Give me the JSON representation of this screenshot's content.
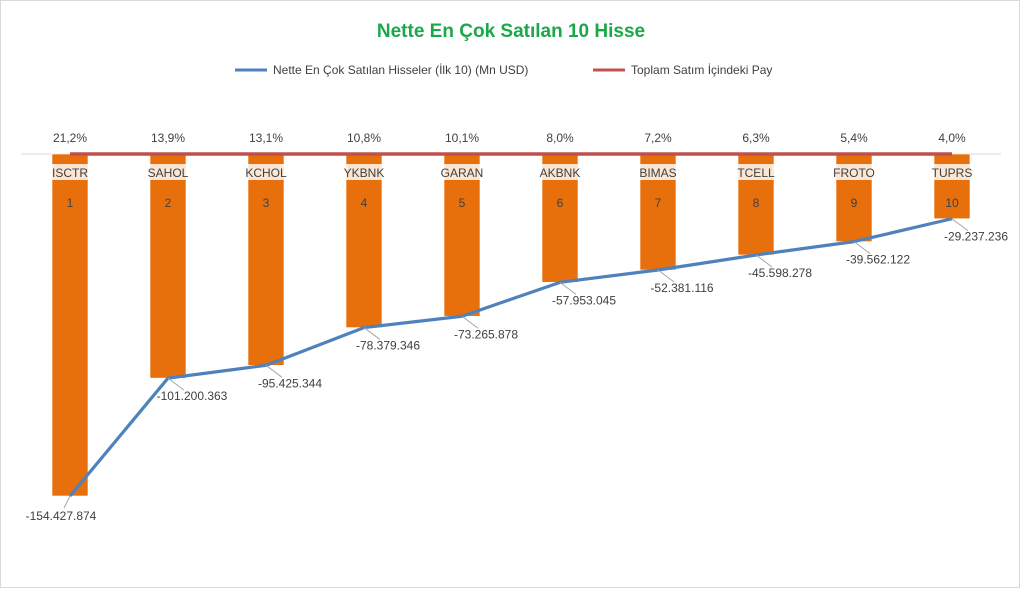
{
  "chart_data": {
    "type": "bar",
    "title": "Nette En Çok Satılan 10 Hisse",
    "categories": [
      "ISCTR",
      "SAHOL",
      "KCHOL",
      "YKBNK",
      "GARAN",
      "AKBNK",
      "BIMAS",
      "TCELL",
      "FROTO",
      "TUPRS"
    ],
    "ranks": [
      "1",
      "2",
      "3",
      "4",
      "5",
      "6",
      "7",
      "8",
      "9",
      "10"
    ],
    "series": [
      {
        "name": "Nette En Çok Satılan Hisseler (İlk 10) (Mn USD)",
        "kind": "bar+line",
        "values": [
          -154.427874,
          -101.200363,
          -95.425344,
          -78.379346,
          -73.265878,
          -57.953045,
          -52.381116,
          -45.598278,
          -39.562122,
          -29.237236
        ],
        "labels": [
          "-154.427.874",
          "-101.200.363",
          "-95.425.344",
          "-78.379.346",
          "-73.265.878",
          "-57.953.045",
          "-52.381.116",
          "-45.598.278",
          "-39.562.122",
          "-29.237.236"
        ],
        "bar_color": "#e8700c",
        "line_color": "#4f81bd"
      },
      {
        "name": "Toplam Satım İçindeki Pay",
        "kind": "line",
        "values": [
          21.2,
          13.9,
          13.1,
          10.8,
          10.1,
          8.0,
          7.2,
          6.3,
          5.4,
          4.0
        ],
        "labels": [
          "21,2%",
          "13,9%",
          "13,1%",
          "10,8%",
          "10,1%",
          "8,0%",
          "7,2%",
          "6,3%",
          "5,4%",
          "4,0%"
        ],
        "line_color": "#c0504d"
      }
    ],
    "ylim": [
      -160,
      0
    ],
    "legend_position": "top",
    "grid": false
  }
}
